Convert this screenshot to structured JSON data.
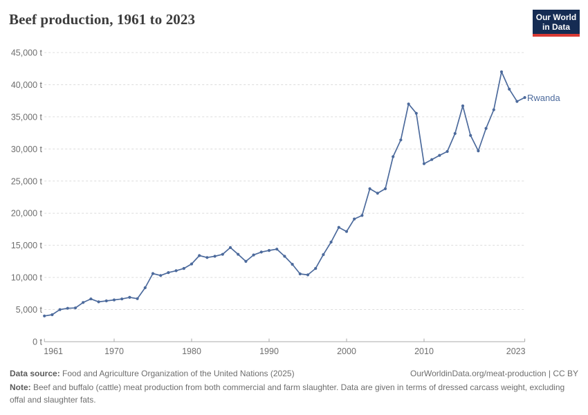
{
  "header": {
    "title": "Beef production, 1961 to 2023",
    "logo_line1": "Our World",
    "logo_line2": "in Data"
  },
  "chart_data": {
    "type": "line",
    "title": "Beef production, 1961 to 2023",
    "unit": "t",
    "xlim": [
      1961,
      2023
    ],
    "ylim": [
      0,
      45000
    ],
    "grid": "dashed horizontal gridlines, no vertical grid",
    "legend_position": "end-of-line label right of last point",
    "x_ticks": [
      1961,
      1970,
      1980,
      1990,
      2000,
      2010,
      2023
    ],
    "y_ticks": {
      "values": [
        0,
        5000,
        10000,
        15000,
        20000,
        25000,
        30000,
        35000,
        40000,
        45000
      ],
      "labels": [
        "0 t",
        "5,000 t",
        "10,000 t",
        "15,000 t",
        "20,000 t",
        "25,000 t",
        "30,000 t",
        "35,000 t",
        "40,000 t",
        "45,000 t"
      ]
    },
    "x": [
      1961,
      1962,
      1963,
      1964,
      1965,
      1966,
      1967,
      1968,
      1969,
      1970,
      1971,
      1972,
      1973,
      1974,
      1975,
      1976,
      1977,
      1978,
      1979,
      1980,
      1981,
      1982,
      1983,
      1984,
      1985,
      1986,
      1987,
      1988,
      1989,
      1990,
      1991,
      1992,
      1993,
      1994,
      1995,
      1996,
      1997,
      1998,
      1999,
      2000,
      2001,
      2002,
      2003,
      2004,
      2005,
      2006,
      2007,
      2008,
      2009,
      2010,
      2011,
      2012,
      2013,
      2014,
      2015,
      2016,
      2017,
      2018,
      2019,
      2020,
      2021,
      2022,
      2023
    ],
    "series": [
      {
        "name": "Rwanda",
        "color": "#4c6a9c",
        "values": [
          4000,
          4200,
          5000,
          5200,
          5250,
          6100,
          6650,
          6200,
          6350,
          6500,
          6650,
          6900,
          6700,
          8400,
          10600,
          10300,
          10750,
          11050,
          11400,
          12100,
          13400,
          13100,
          13300,
          13600,
          14650,
          13600,
          12500,
          13500,
          13950,
          14200,
          14400,
          13300,
          12050,
          10550,
          10400,
          11400,
          13550,
          15500,
          17800,
          17150,
          19100,
          19650,
          23800,
          23100,
          23800,
          28800,
          31400,
          37000,
          35550,
          27700,
          28350,
          29000,
          29600,
          32400,
          36700,
          32100,
          29700,
          33200,
          36100,
          42000,
          39300,
          37400,
          38000
        ]
      }
    ]
  },
  "footer": {
    "source_label": "Data source:",
    "source_text": " Food and Agriculture Organization of the United Nations (2025)",
    "link_text": "OurWorldinData.org/meat-production | CC BY",
    "note_label": "Note:",
    "note_text": " Beef and buffalo (cattle) meat production from both commercial and farm slaughter. Data are given in terms of dressed carcass weight, excluding offal and slaughter fats."
  }
}
